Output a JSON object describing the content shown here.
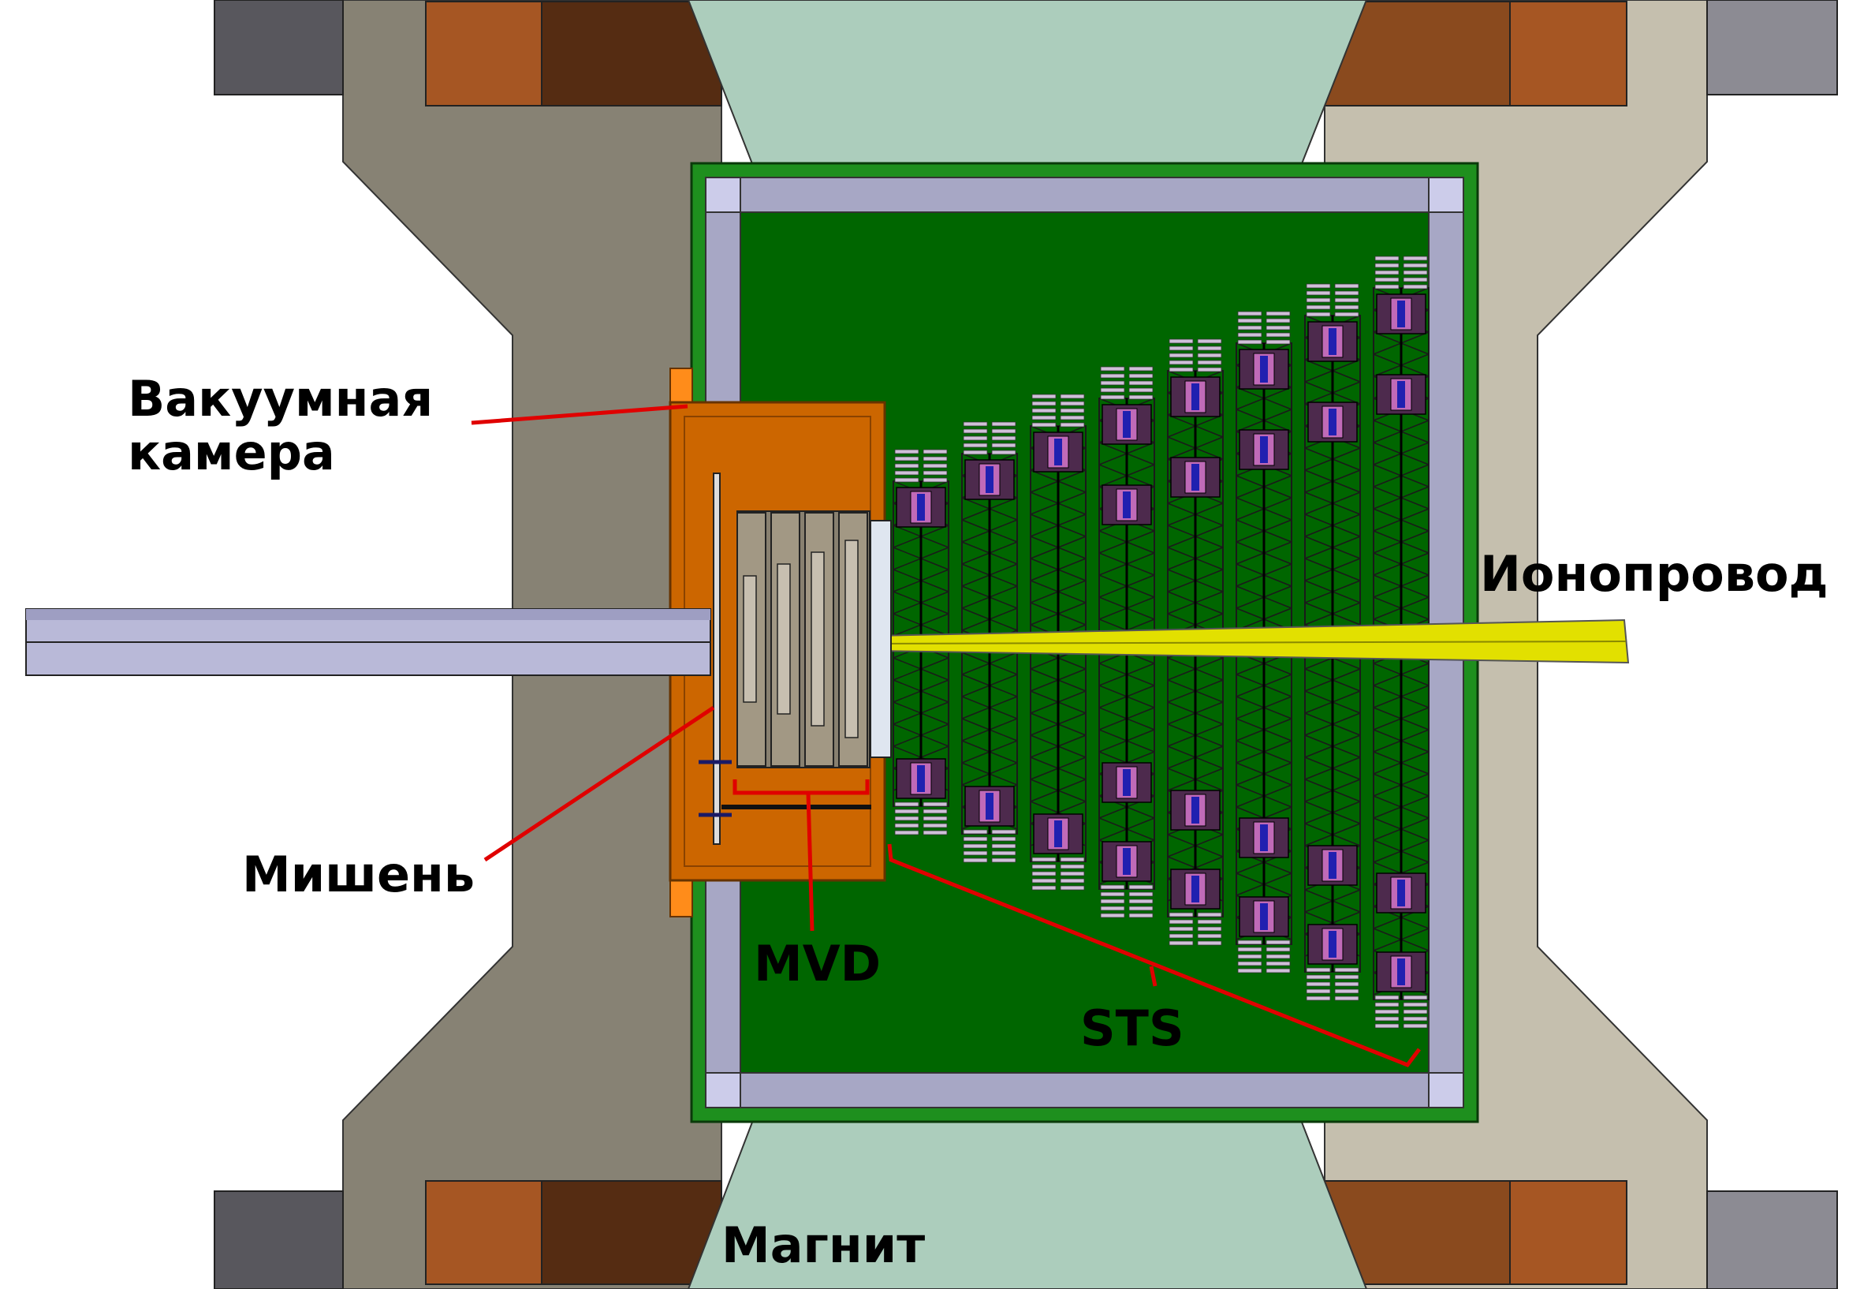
{
  "labels": {
    "vacuum_line1": "Вакуумная",
    "vacuum_line2": "камера",
    "beampipe": "Ионопровод",
    "target": "Мишень",
    "mvd": "MVD",
    "sts": "STS",
    "magnet": "Магнит"
  },
  "colors": {
    "yoke_left": "#878274",
    "yoke_right": "#c5bfae",
    "pole": "#accdbc",
    "coil_light": "#a65623",
    "coil_dark": "#552c12",
    "side_block": "#58575d",
    "side_block_right": "#8c8b93",
    "box_border": "#1e8f1e",
    "box_inner": "#006600",
    "frame": "#a7a7c5",
    "vacuum_chamber": "#cc6600",
    "vacuum_chamber_edge": "#ff8c1a",
    "beampipe": "#e2e000",
    "pipe_rod": "#b9b9d8",
    "leader": "#e00000",
    "sensor_stripe": "#cfc0d8",
    "sensor_pink": "#c06ab8",
    "sensor_blue": "#2020b0"
  },
  "sts_stations": 8,
  "mvd_stations": 4
}
